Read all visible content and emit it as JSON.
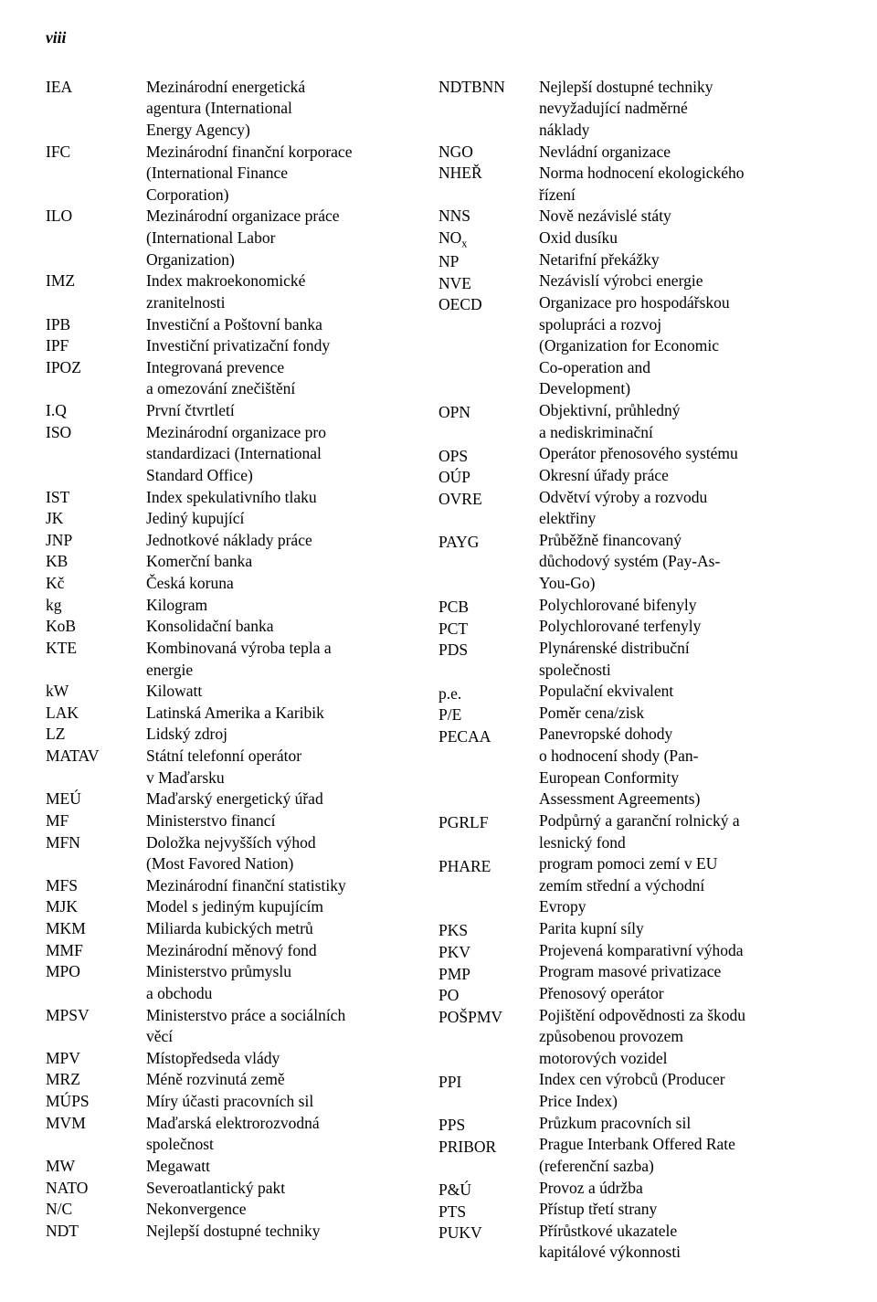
{
  "page_number_label": "viii",
  "font": {
    "family": "Times New Roman",
    "size_pt": 13,
    "color": "#000000"
  },
  "background_color": "#ffffff",
  "left_column": [
    {
      "abbr": "IEA",
      "def": "Mezinárodní energetická\nagentura (International\nEnergy Agency)"
    },
    {
      "abbr": "IFC",
      "def": "Mezinárodní finanční korporace\n(International Finance\nCorporation)"
    },
    {
      "abbr": "ILO",
      "def": "Mezinárodní organizace práce\n(International Labor\nOrganization)"
    },
    {
      "abbr": "IMZ",
      "def": "Index makroekonomické\nzranitelnosti"
    },
    {
      "abbr": "IPB",
      "def": "Investiční a Poštovní banka"
    },
    {
      "abbr": "IPF",
      "def": "Investiční privatizační fondy"
    },
    {
      "abbr": "IPOZ",
      "def": "Integrovaná prevence\na omezování znečištění"
    },
    {
      "abbr": "I.Q",
      "def": "První čtvrtletí"
    },
    {
      "abbr": "ISO",
      "def": "Mezinárodní organizace pro\nstandardizaci (International\nStandard Office)"
    },
    {
      "abbr": "IST",
      "def": "Index spekulativního tlaku"
    },
    {
      "abbr": "JK",
      "def": "Jediný kupující"
    },
    {
      "abbr": "JNP",
      "def": "Jednotkové náklady práce"
    },
    {
      "abbr": "KB",
      "def": "Komerční banka"
    },
    {
      "abbr": "Kč",
      "def": "Česká koruna"
    },
    {
      "abbr": "kg",
      "def": "Kilogram"
    },
    {
      "abbr": "KoB",
      "def": "Konsolidační banka"
    },
    {
      "abbr": "KTE",
      "def": "Kombinovaná výroba tepla a\nenergie"
    },
    {
      "abbr": "kW",
      "def": "Kilowatt"
    },
    {
      "abbr": "LAK",
      "def": "Latinská Amerika a Karibik"
    },
    {
      "abbr": "LZ",
      "def": "Lidský zdroj"
    },
    {
      "abbr": "MATAV",
      "def": "Státní telefonní operátor\nv Maďarsku"
    },
    {
      "abbr": "MEÚ",
      "def": "Maďarský energetický úřad"
    },
    {
      "abbr": "MF",
      "def": "Ministerstvo financí"
    },
    {
      "abbr": "MFN",
      "def": "Doložka nejvyšších výhod\n(Most Favored Nation)"
    },
    {
      "abbr": "MFS",
      "def": "Mezinárodní finanční statistiky"
    },
    {
      "abbr": "MJK",
      "def": "Model s jediným kupujícím"
    },
    {
      "abbr": "MKM",
      "def": "Miliarda kubických metrů"
    },
    {
      "abbr": "MMF",
      "def": "Mezinárodní měnový fond"
    },
    {
      "abbr": "MPO",
      "def": "Ministerstvo průmyslu\na obchodu"
    },
    {
      "abbr": "MPSV",
      "def": "Ministerstvo práce a sociálních\nvěcí"
    },
    {
      "abbr": "MPV",
      "def": "Místopředseda vlády"
    },
    {
      "abbr": "MRZ",
      "def": "Méně rozvinutá země"
    },
    {
      "abbr": "MÚPS",
      "def": "Míry účasti pracovních sil"
    },
    {
      "abbr": "MVM",
      "def": "Maďarská elektrorozvodná\nspolečnost"
    },
    {
      "abbr": "MW",
      "def": "Megawatt"
    },
    {
      "abbr": "NATO",
      "def": "Severoatlantický pakt"
    },
    {
      "abbr": "N/C",
      "def": "Nekonvergence"
    },
    {
      "abbr": "NDT",
      "def": "Nejlepší dostupné techniky"
    }
  ],
  "right_column": [
    {
      "abbr": "NDTBNN",
      "def": "Nejlepší dostupné techniky\nnevyžadující nadměrné\nnáklady"
    },
    {
      "abbr": "NGO",
      "def": "Nevládní organizace"
    },
    {
      "abbr": "NHEŘ",
      "def": "Norma hodnocení ekologického\nřízení"
    },
    {
      "abbr": "NNS",
      "def": "Nově nezávislé státy"
    },
    {
      "abbr": "NOₓ",
      "def": "Oxid dusíku"
    },
    {
      "abbr": "NP",
      "def": "Netarifní překážky"
    },
    {
      "abbr": "NVE",
      "def": "Nezávislí výrobci energie"
    },
    {
      "abbr": "OECD",
      "def": "Organizace pro hospodářskou\nspolupráci a rozvoj\n(Organization for Economic\nCo-operation and\nDevelopment)"
    },
    {
      "abbr": "OPN",
      "def": "Objektivní, průhledný\na nediskriminační"
    },
    {
      "abbr": "OPS",
      "def": "Operátor přenosového systému"
    },
    {
      "abbr": "OÚP",
      "def": "Okresní úřady práce"
    },
    {
      "abbr": "OVRE",
      "def": "Odvětví výroby a rozvodu\nelektřiny"
    },
    {
      "abbr": "PAYG",
      "def": "Průběžně financovaný\ndůchodový systém (Pay-As-\nYou-Go)"
    },
    {
      "abbr": "PCB",
      "def": "Polychlorované bifenyly"
    },
    {
      "abbr": "PCT",
      "def": "Polychlorované terfenyly"
    },
    {
      "abbr": "PDS",
      "def": "Plynárenské distribuční\nspolečnosti"
    },
    {
      "abbr": "p.e.",
      "def": "Populační ekvivalent"
    },
    {
      "abbr": "P/E",
      "def": "Poměr cena/zisk"
    },
    {
      "abbr": "PECAA",
      "def": "Panevropské dohody\no hodnocení shody (Pan-\nEuropean Conformity\nAssessment Agreements)"
    },
    {
      "abbr": "PGRLF",
      "def": "Podpůrný a garanční rolnický a\nlesnický fond"
    },
    {
      "abbr": "PHARE",
      "def": "program pomoci zemí v EU\nzemím střední a východní\nEvropy"
    },
    {
      "abbr": "PKS",
      "def": "Parita kupní síly"
    },
    {
      "abbr": "PKV",
      "def": "Projevená komparativní výhoda"
    },
    {
      "abbr": "PMP",
      "def": "Program masové privatizace"
    },
    {
      "abbr": "PO",
      "def": "Přenosový operátor"
    },
    {
      "abbr": "POŠPMV",
      "def": "Pojištění odpovědnosti za škodu\nzpůsobenou provozem\nmotorových vozidel"
    },
    {
      "abbr": "PPI",
      "def": "Index cen výrobců (Producer\nPrice Index)"
    },
    {
      "abbr": "PPS",
      "def": "Průzkum pracovních sil"
    },
    {
      "abbr": "PRIBOR",
      "def": "Prague Interbank Offered Rate\n(referenční sazba)"
    },
    {
      "abbr": "P&Ú",
      "def": "Provoz a údržba"
    },
    {
      "abbr": "PTS",
      "def": "Přístup třetí strany"
    },
    {
      "abbr": "PUKV",
      "def": "Přírůstkové ukazatele\nkapitálové výkonnosti"
    }
  ]
}
